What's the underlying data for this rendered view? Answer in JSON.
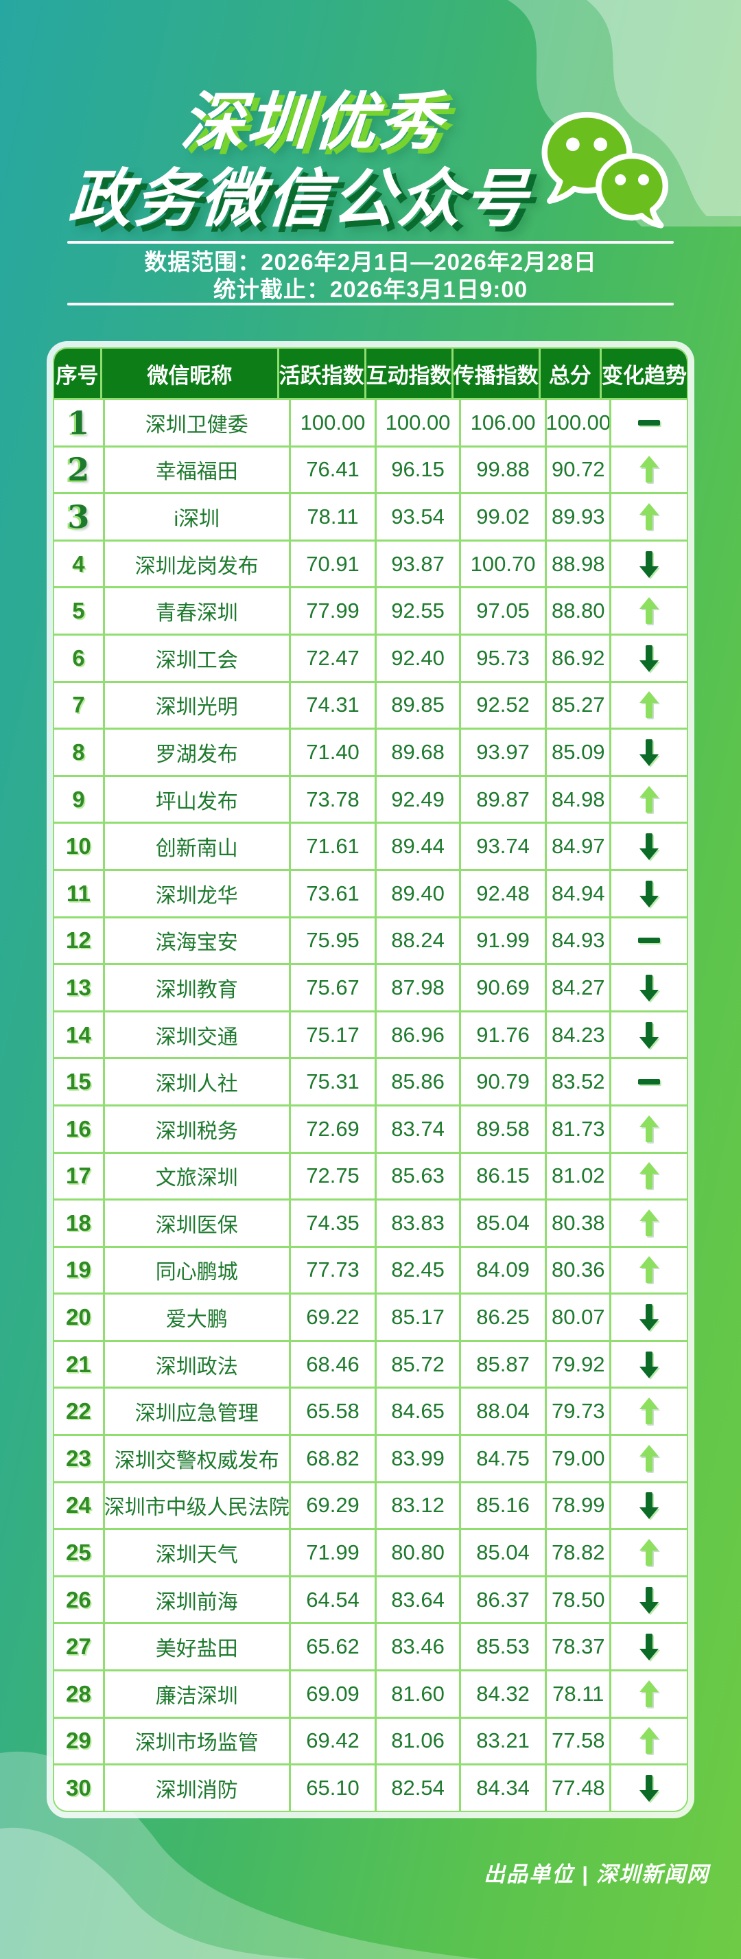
{
  "header": {
    "title_line1": "深圳优秀",
    "title_line2": "政务微信公众号",
    "icon": "wechat-bubbles"
  },
  "meta": {
    "data_range": "数据范围：2026年2月1日—2026年2月28日",
    "deadline": "统计截止：2026年3月1日9:00"
  },
  "footer": {
    "credit": "出品单位 | 深圳新闻网"
  },
  "colors": {
    "background_teal": "#27a7a1",
    "background_green": "#6ecb45",
    "title_shadow_lime": "#77d32e",
    "title_shadow_dark": "#0a6b2f",
    "table_header_green": "#0d7d17",
    "grid_green": "#90dd70",
    "cell_text_green": "#1e7a2e",
    "trend_up_lime": "#8de05f",
    "trend_down_dark": "#0c6b26",
    "wechat_bubble_green": "#6abf1f"
  },
  "chart_data": {
    "type": "table",
    "title": "深圳优秀政务微信公众号",
    "columns": [
      "序号",
      "微信昵称",
      "活跃指数",
      "互动指数",
      "传播指数",
      "总分",
      "变化趋势"
    ],
    "trend_legend": {
      "up": "上升",
      "down": "下降",
      "flat": "持平"
    },
    "rows": [
      {
        "rank": "1",
        "name": "深圳卫健委",
        "activity": "100.00",
        "interaction": "100.00",
        "spread": "106.00",
        "total": "100.00",
        "trend": "flat"
      },
      {
        "rank": "2",
        "name": "幸福福田",
        "activity": "76.41",
        "interaction": "96.15",
        "spread": "99.88",
        "total": "90.72",
        "trend": "up"
      },
      {
        "rank": "3",
        "name": "i深圳",
        "activity": "78.11",
        "interaction": "93.54",
        "spread": "99.02",
        "total": "89.93",
        "trend": "up"
      },
      {
        "rank": "4",
        "name": "深圳龙岗发布",
        "activity": "70.91",
        "interaction": "93.87",
        "spread": "100.70",
        "total": "88.98",
        "trend": "down"
      },
      {
        "rank": "5",
        "name": "青春深圳",
        "activity": "77.99",
        "interaction": "92.55",
        "spread": "97.05",
        "total": "88.80",
        "trend": "up"
      },
      {
        "rank": "6",
        "name": "深圳工会",
        "activity": "72.47",
        "interaction": "92.40",
        "spread": "95.73",
        "total": "86.92",
        "trend": "down"
      },
      {
        "rank": "7",
        "name": "深圳光明",
        "activity": "74.31",
        "interaction": "89.85",
        "spread": "92.52",
        "total": "85.27",
        "trend": "up"
      },
      {
        "rank": "8",
        "name": "罗湖发布",
        "activity": "71.40",
        "interaction": "89.68",
        "spread": "93.97",
        "total": "85.09",
        "trend": "down"
      },
      {
        "rank": "9",
        "name": "坪山发布",
        "activity": "73.78",
        "interaction": "92.49",
        "spread": "89.87",
        "total": "84.98",
        "trend": "up"
      },
      {
        "rank": "10",
        "name": "创新南山",
        "activity": "71.61",
        "interaction": "89.44",
        "spread": "93.74",
        "total": "84.97",
        "trend": "down"
      },
      {
        "rank": "11",
        "name": "深圳龙华",
        "activity": "73.61",
        "interaction": "89.40",
        "spread": "92.48",
        "total": "84.94",
        "trend": "down"
      },
      {
        "rank": "12",
        "name": "滨海宝安",
        "activity": "75.95",
        "interaction": "88.24",
        "spread": "91.99",
        "total": "84.93",
        "trend": "flat"
      },
      {
        "rank": "13",
        "name": "深圳教育",
        "activity": "75.67",
        "interaction": "87.98",
        "spread": "90.69",
        "total": "84.27",
        "trend": "down"
      },
      {
        "rank": "14",
        "name": "深圳交通",
        "activity": "75.17",
        "interaction": "86.96",
        "spread": "91.76",
        "total": "84.23",
        "trend": "down"
      },
      {
        "rank": "15",
        "name": "深圳人社",
        "activity": "75.31",
        "interaction": "85.86",
        "spread": "90.79",
        "total": "83.52",
        "trend": "flat"
      },
      {
        "rank": "16",
        "name": "深圳税务",
        "activity": "72.69",
        "interaction": "83.74",
        "spread": "89.58",
        "total": "81.73",
        "trend": "up"
      },
      {
        "rank": "17",
        "name": "文旅深圳",
        "activity": "72.75",
        "interaction": "85.63",
        "spread": "86.15",
        "total": "81.02",
        "trend": "up"
      },
      {
        "rank": "18",
        "name": "深圳医保",
        "activity": "74.35",
        "interaction": "83.83",
        "spread": "85.04",
        "total": "80.38",
        "trend": "up"
      },
      {
        "rank": "19",
        "name": "同心鹏城",
        "activity": "77.73",
        "interaction": "82.45",
        "spread": "84.09",
        "total": "80.36",
        "trend": "up"
      },
      {
        "rank": "20",
        "name": "爱大鹏",
        "activity": "69.22",
        "interaction": "85.17",
        "spread": "86.25",
        "total": "80.07",
        "trend": "down"
      },
      {
        "rank": "21",
        "name": "深圳政法",
        "activity": "68.46",
        "interaction": "85.72",
        "spread": "85.87",
        "total": "79.92",
        "trend": "down"
      },
      {
        "rank": "22",
        "name": "深圳应急管理",
        "activity": "65.58",
        "interaction": "84.65",
        "spread": "88.04",
        "total": "79.73",
        "trend": "up"
      },
      {
        "rank": "23",
        "name": "深圳交警权威发布",
        "activity": "68.82",
        "interaction": "83.99",
        "spread": "84.75",
        "total": "79.00",
        "trend": "up"
      },
      {
        "rank": "24",
        "name": "深圳市中级人民法院",
        "activity": "69.29",
        "interaction": "83.12",
        "spread": "85.16",
        "total": "78.99",
        "trend": "down"
      },
      {
        "rank": "25",
        "name": "深圳天气",
        "activity": "71.99",
        "interaction": "80.80",
        "spread": "85.04",
        "total": "78.82",
        "trend": "up"
      },
      {
        "rank": "26",
        "name": "深圳前海",
        "activity": "64.54",
        "interaction": "83.64",
        "spread": "86.37",
        "total": "78.50",
        "trend": "down"
      },
      {
        "rank": "27",
        "name": "美好盐田",
        "activity": "65.62",
        "interaction": "83.46",
        "spread": "85.53",
        "total": "78.37",
        "trend": "down"
      },
      {
        "rank": "28",
        "name": "廉洁深圳",
        "activity": "69.09",
        "interaction": "81.60",
        "spread": "84.32",
        "total": "78.11",
        "trend": "up"
      },
      {
        "rank": "29",
        "name": "深圳市场监管",
        "activity": "69.42",
        "interaction": "81.06",
        "spread": "83.21",
        "total": "77.58",
        "trend": "up"
      },
      {
        "rank": "30",
        "name": "深圳消防",
        "activity": "65.10",
        "interaction": "82.54",
        "spread": "84.34",
        "total": "77.48",
        "trend": "down"
      }
    ]
  }
}
